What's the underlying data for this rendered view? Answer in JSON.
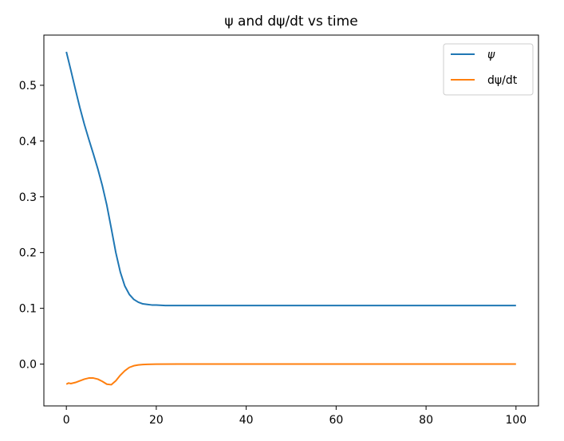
{
  "chart_data": {
    "type": "line",
    "title": "ψ and dψ/dt vs time",
    "xlabel": "",
    "ylabel": "",
    "xlim": [
      -5,
      105
    ],
    "ylim": [
      -0.075,
      0.59
    ],
    "xticks": [
      0,
      20,
      40,
      60,
      80,
      100
    ],
    "xtick_labels": [
      "0",
      "20",
      "40",
      "60",
      "80",
      "100"
    ],
    "yticks": [
      0.0,
      0.1,
      0.2,
      0.3,
      0.4,
      0.5
    ],
    "ytick_labels": [
      "0.0",
      "0.1",
      "0.2",
      "0.3",
      "0.4",
      "0.5"
    ],
    "grid": false,
    "legend_position": "top-right",
    "series": [
      {
        "name": "ψ",
        "color": "#1f77b4",
        "x": [
          0,
          1,
          2,
          3,
          4,
          5,
          6,
          7,
          8,
          9,
          10,
          11,
          12,
          13,
          14,
          15,
          16,
          17,
          18,
          19,
          20,
          22,
          25,
          30,
          40,
          60,
          80,
          100
        ],
        "y": [
          0.56,
          0.527,
          0.493,
          0.46,
          0.43,
          0.403,
          0.377,
          0.35,
          0.32,
          0.285,
          0.243,
          0.2,
          0.165,
          0.14,
          0.125,
          0.116,
          0.111,
          0.108,
          0.107,
          0.106,
          0.106,
          0.105,
          0.105,
          0.105,
          0.105,
          0.105,
          0.105,
          0.105
        ]
      },
      {
        "name": "dψ/dt",
        "color": "#ff7f0e",
        "x": [
          0,
          0.5,
          1,
          2,
          3,
          4,
          5,
          6,
          7,
          8,
          9,
          10,
          11,
          12,
          13,
          14,
          15,
          16,
          17,
          18,
          20,
          25,
          30,
          40,
          60,
          80,
          100
        ],
        "y": [
          -0.036,
          -0.034,
          -0.035,
          -0.033,
          -0.03,
          -0.027,
          -0.025,
          -0.025,
          -0.027,
          -0.031,
          -0.036,
          -0.037,
          -0.03,
          -0.02,
          -0.012,
          -0.006,
          -0.003,
          -0.0015,
          -0.0008,
          -0.0004,
          -0.0001,
          0.0,
          0.0,
          0.0,
          0.0,
          0.0,
          0.0
        ]
      }
    ]
  }
}
